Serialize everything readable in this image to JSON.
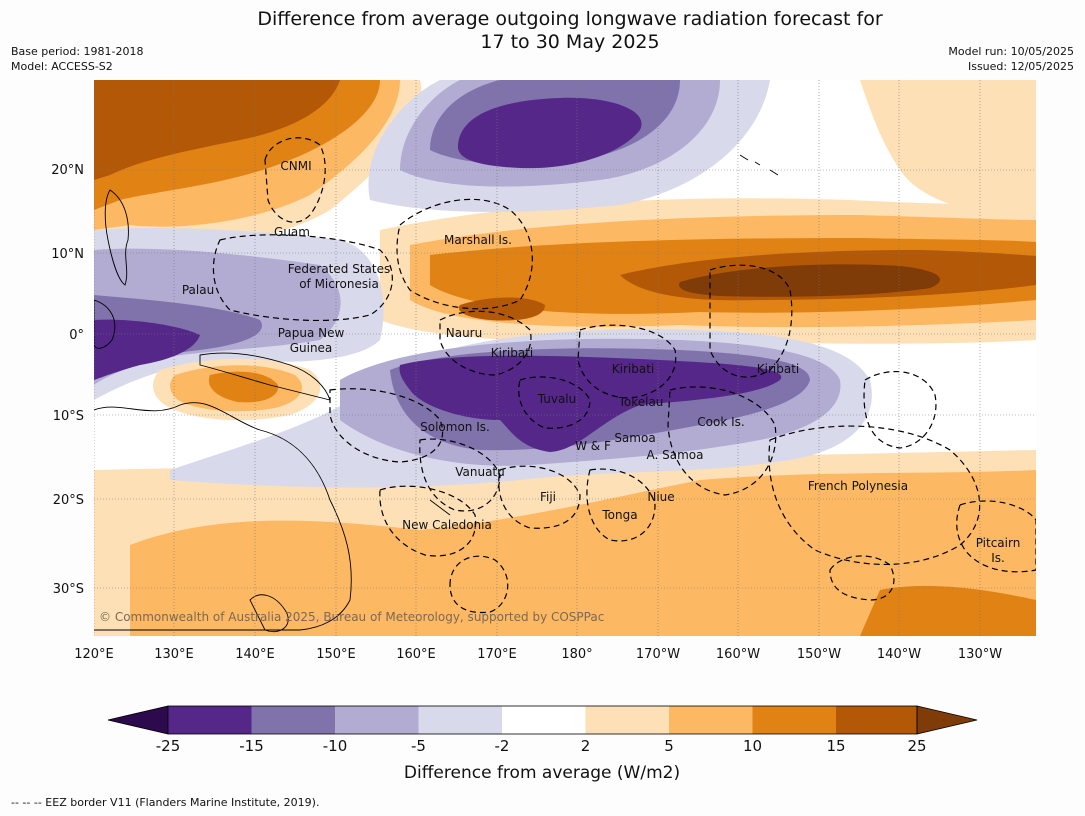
{
  "title_line1": "Difference from average outgoing longwave radiation forecast for",
  "title_line2": "17 to 30 May 2025",
  "base_period": "Base period: 1981-2018",
  "model": "Model: ACCESS-S2",
  "model_run": "Model run: 10/05/2025",
  "issued": "Issued: 12/05/2025",
  "credit": "© Commonwealth of Australia 2025, Bureau of Meteorology, supported by COSPPac",
  "footer": "-- -- -- EEZ border V11 (Flanders Marine Institute, 2019).",
  "lon_ticks": [
    "120°E",
    "130°E",
    "140°E",
    "150°E",
    "160°E",
    "170°E",
    "180°",
    "170°W",
    "160°W",
    "150°W",
    "140°W",
    "130°W"
  ],
  "lat_ticks": [
    "20°N",
    "10°N",
    "0°",
    "10°S",
    "20°S",
    "30°S"
  ],
  "places": [
    {
      "name": "CNMI"
    },
    {
      "name": "Guam"
    },
    {
      "name": "Marshall Is."
    },
    {
      "name": "Federated States"
    },
    {
      "name": "of Micronesia"
    },
    {
      "name": "Palau"
    },
    {
      "name": "Papua New"
    },
    {
      "name": "Guinea"
    },
    {
      "name": "Nauru"
    },
    {
      "name": "Kiribati"
    },
    {
      "name": "Kiribati"
    },
    {
      "name": "Kiribati"
    },
    {
      "name": "Tuvalu"
    },
    {
      "name": "Tokelau"
    },
    {
      "name": "Cook Is."
    },
    {
      "name": "Solomon Is."
    },
    {
      "name": "W & F"
    },
    {
      "name": "Samoa"
    },
    {
      "name": "A. Samoa"
    },
    {
      "name": "Vanuatu"
    },
    {
      "name": "Fiji"
    },
    {
      "name": "Niue"
    },
    {
      "name": "Tonga"
    },
    {
      "name": "French Polynesia"
    },
    {
      "name": "New Caledonia"
    },
    {
      "name": "Pitcairn"
    },
    {
      "name": "Is."
    }
  ],
  "colorbar": {
    "title": "Difference from average (W/m2)",
    "labels": [
      "-25",
      "-15",
      "-10",
      "-5",
      "-2",
      "2",
      "5",
      "10",
      "15",
      "25"
    ],
    "colors": [
      "#2d0a4e",
      "#542788",
      "#8073ac",
      "#b2abd2",
      "#d8daeb",
      "#ffffff",
      "#fee0b6",
      "#fdb863",
      "#e08214",
      "#b35806",
      "#7f3b08"
    ]
  }
}
